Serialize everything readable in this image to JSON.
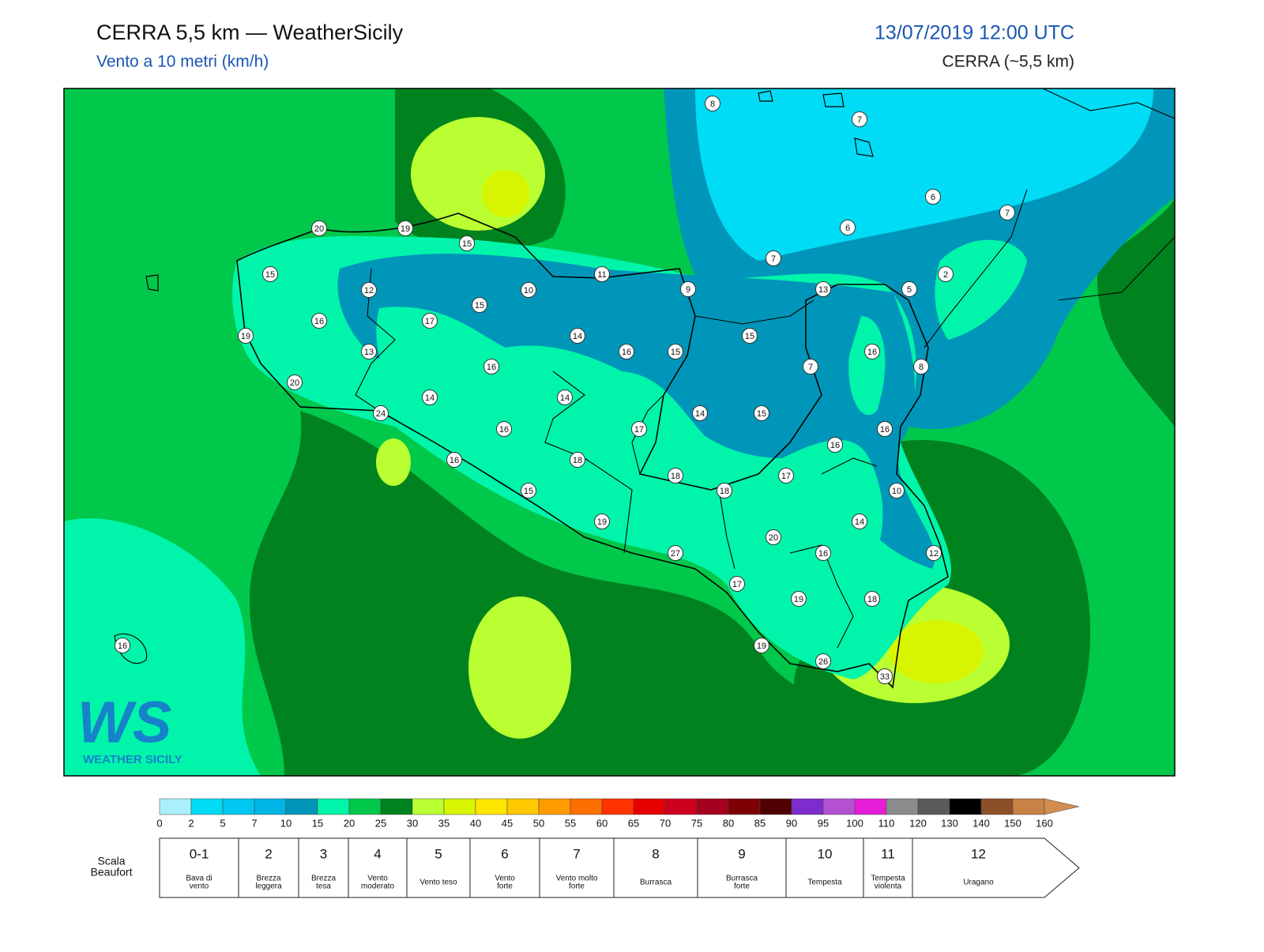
{
  "header": {
    "title": "CERRA 5,5 km — WeatherSicily",
    "subtitle": "Vento a 10 metri (km/h)",
    "datetime": "13/07/2019 12:00 UTC",
    "model": "CERRA (~5,5 km)"
  },
  "logo": {
    "mark": "WS",
    "name": "WEATHER SICILY"
  },
  "stations": [
    8,
    7,
    6,
    7,
    20,
    19,
    15,
    6,
    7,
    15,
    11,
    2,
    12,
    10,
    9,
    13,
    5,
    15,
    16,
    17,
    19,
    14,
    15,
    13,
    16,
    15,
    16,
    16,
    7,
    8,
    20,
    14,
    14,
    24,
    14,
    15,
    16,
    17,
    16,
    16,
    16,
    18,
    18,
    17,
    18,
    15,
    10,
    14,
    19,
    20,
    27,
    16,
    12,
    17,
    19,
    18,
    16,
    19,
    26,
    33
  ],
  "colorbar": {
    "ticks": [
      0,
      2,
      5,
      7,
      10,
      15,
      20,
      25,
      30,
      35,
      40,
      45,
      50,
      55,
      60,
      65,
      70,
      75,
      80,
      85,
      90,
      95,
      100,
      110,
      120,
      130,
      140,
      150,
      160
    ],
    "colors": [
      "#aaf0fa",
      "#00dcf5",
      "#00c8f0",
      "#00b4e6",
      "#0096b9",
      "#00f5aa",
      "#00c84b",
      "#00821e",
      "#b9ff32",
      "#d7f500",
      "#ffe600",
      "#ffc800",
      "#ff9b00",
      "#ff6e00",
      "#ff3200",
      "#e60000",
      "#cd001e",
      "#a5001e",
      "#7d0005",
      "#500000",
      "#7d2dcd",
      "#b450d2",
      "#e61ed7",
      "#8c8c8c",
      "#5a5a5a",
      "#000000",
      "#8c5028",
      "#c88246"
    ],
    "over_color": "#d28c50"
  },
  "beaufort": {
    "label": [
      "Scala",
      "Beaufort"
    ],
    "levels": [
      {
        "force": "0-1",
        "desc": [
          "Bava di",
          "vento"
        ]
      },
      {
        "force": "2",
        "desc": [
          "Brezza",
          "leggera"
        ]
      },
      {
        "force": "3",
        "desc": [
          "Brezza",
          "tesa"
        ]
      },
      {
        "force": "4",
        "desc": [
          "Vento",
          "moderato"
        ]
      },
      {
        "force": "5",
        "desc": [
          "Vento teso"
        ]
      },
      {
        "force": "6",
        "desc": [
          "Vento",
          "forte"
        ]
      },
      {
        "force": "7",
        "desc": [
          "Vento molto",
          "forte"
        ]
      },
      {
        "force": "8",
        "desc": [
          "Burrasca"
        ]
      },
      {
        "force": "9",
        "desc": [
          "Burrasca",
          "forte"
        ]
      },
      {
        "force": "10",
        "desc": [
          "Tempesta"
        ]
      },
      {
        "force": "11",
        "desc": [
          "Tempesta",
          "violenta"
        ]
      },
      {
        "force": "12",
        "desc": [
          "Uragano"
        ]
      }
    ]
  }
}
